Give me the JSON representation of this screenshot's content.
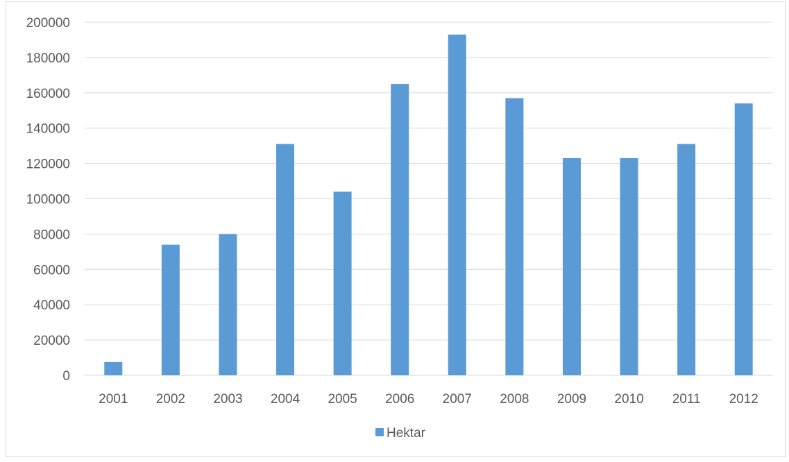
{
  "chart_data": {
    "type": "bar",
    "categories": [
      "2001",
      "2002",
      "2003",
      "2004",
      "2005",
      "2006",
      "2007",
      "2008",
      "2009",
      "2010",
      "2011",
      "2012"
    ],
    "series": [
      {
        "name": "Hektar",
        "color": "#5b9bd5",
        "values": [
          7500,
          74000,
          80000,
          131000,
          104000,
          165000,
          193000,
          157000,
          123000,
          123000,
          131000,
          154000
        ]
      }
    ],
    "ylim": [
      0,
      200000
    ],
    "yticks": [
      0,
      20000,
      40000,
      60000,
      80000,
      100000,
      120000,
      140000,
      160000,
      180000,
      200000
    ],
    "grid": true,
    "legend_position": "bottom",
    "title": "",
    "xlabel": "",
    "ylabel": ""
  }
}
